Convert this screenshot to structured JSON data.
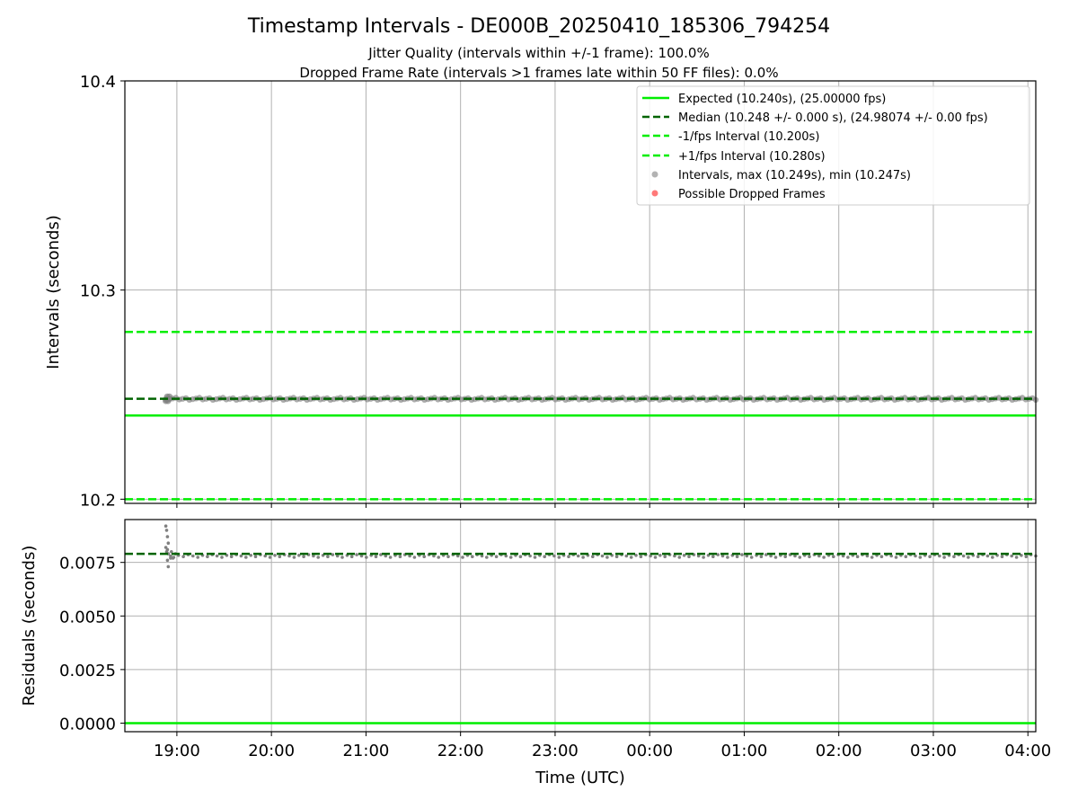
{
  "header": {
    "title": "Timestamp Intervals - DE000B_20250410_185306_794254",
    "subtitle1": "Jitter Quality (intervals within +/-1 frame): 100.0%",
    "subtitle2": "Dropped Frame Rate (intervals >1 frames late within 50 FF files): 0.0%"
  },
  "colors": {
    "expected": "#00ee00",
    "median": "#006400",
    "interval": "#00ee00",
    "points": "#808080",
    "dropped": "#ff4040",
    "grid": "#b0b0b0"
  },
  "chart_data": [
    {
      "type": "scatter",
      "title": "Timestamp Intervals - DE000B_20250410_185306_794254",
      "xlabel": "",
      "ylabel": "Intervals (seconds)",
      "ylim": [
        10.198,
        10.4
      ],
      "xlim": [
        "18:27",
        "04:05"
      ],
      "yticks": [
        "10.2",
        "10.3",
        "10.4"
      ],
      "ytick_values": [
        10.2,
        10.3,
        10.4
      ],
      "grid": true,
      "legend_position": "top-right",
      "hlines": [
        {
          "name": "Expected (10.240s), (25.00000 fps)",
          "y": 10.24,
          "style": "solid",
          "color": "#00ee00"
        },
        {
          "name": "Median (10.248 +/- 0.000 s), (24.98074 +/- 0.00 fps)",
          "y": 10.248,
          "style": "dashed",
          "color": "#006400"
        },
        {
          "name": "-1/fps Interval (10.200s)",
          "y": 10.2,
          "style": "dashed",
          "color": "#00ee00"
        },
        {
          "name": "+1/fps Interval (10.280s)",
          "y": 10.28,
          "style": "dashed",
          "color": "#00ee00"
        }
      ],
      "series": [
        {
          "name": "Intervals, max (10.249s), min (10.247s)",
          "marker": "circle",
          "color": "#808080",
          "x_start": "18:53",
          "x_end": "04:05",
          "y_min": 10.247,
          "y_max": 10.249,
          "y_typical": 10.248
        },
        {
          "name": "Possible Dropped Frames",
          "marker": "circle",
          "color": "#ff4040",
          "points": []
        }
      ]
    },
    {
      "type": "scatter",
      "xlabel": "Time (UTC)",
      "ylabel": "Residuals (seconds)",
      "ylim": [
        -0.0004,
        0.0095
      ],
      "xlim": [
        "18:27",
        "04:05"
      ],
      "xticks": [
        "19:00",
        "20:00",
        "21:00",
        "22:00",
        "23:00",
        "00:00",
        "01:00",
        "02:00",
        "03:00",
        "04:00"
      ],
      "yticks": [
        "0.0000",
        "0.0025",
        "0.0050",
        "0.0075"
      ],
      "ytick_values": [
        0.0,
        0.0025,
        0.005,
        0.0075
      ],
      "grid": true,
      "hlines": [
        {
          "y": 0.0,
          "style": "solid",
          "color": "#00ee00"
        },
        {
          "y": 0.0079,
          "style": "dashed",
          "color": "#006400"
        }
      ],
      "series": [
        {
          "name": "Residuals",
          "color": "#808080",
          "typical": 0.0078,
          "early_points": [
            {
              "x": "18:53",
              "y": 0.0092
            },
            {
              "x": "18:53",
              "y": 0.009
            },
            {
              "x": "18:53",
              "y": 0.0087
            },
            {
              "x": "18:53",
              "y": 0.0084
            },
            {
              "x": "18:53",
              "y": 0.0082
            },
            {
              "x": "18:53",
              "y": 0.008
            },
            {
              "x": "18:53",
              "y": 0.0076
            },
            {
              "x": "18:53",
              "y": 0.0073
            },
            {
              "x": "18:54",
              "y": 0.0081
            },
            {
              "x": "18:54",
              "y": 0.0079
            },
            {
              "x": "18:55",
              "y": 0.0077
            },
            {
              "x": "18:55",
              "y": 0.008
            },
            {
              "x": "18:56",
              "y": 0.0078
            },
            {
              "x": "18:57",
              "y": 0.0077
            },
            {
              "x": "18:58",
              "y": 0.0079
            }
          ]
        }
      ]
    }
  ]
}
